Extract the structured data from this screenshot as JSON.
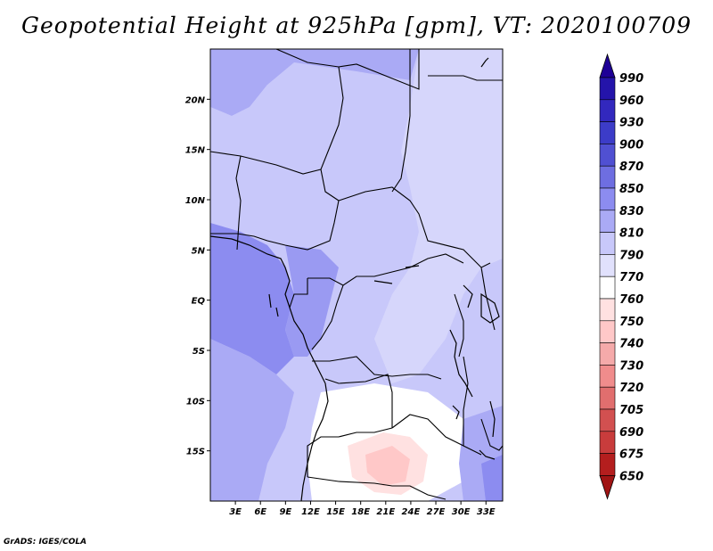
{
  "title": "Geopotential Height at 925hPa [gpm], VT: 2020100709",
  "credit": "GrADS: IGES/COLA",
  "map": {
    "lon_labels": [
      "3E",
      "6E",
      "9E",
      "12E",
      "15E",
      "18E",
      "21E",
      "24E",
      "27E",
      "30E",
      "33E"
    ],
    "lat_labels": [
      "20N",
      "15N",
      "10N",
      "5N",
      "EQ",
      "5S",
      "10S",
      "15S"
    ],
    "lon_range": [
      0,
      35
    ],
    "lat_range": [
      -20,
      25
    ]
  },
  "colorbar": {
    "levels": [
      "990",
      "960",
      "930",
      "900",
      "870",
      "850",
      "830",
      "810",
      "790",
      "770",
      "760",
      "750",
      "740",
      "730",
      "720",
      "705",
      "690",
      "675",
      "650"
    ],
    "colors": [
      "#1e0096",
      "#2414aa",
      "#3228be",
      "#3c3cc8",
      "#5050d2",
      "#6e6ee1",
      "#8c8cf0",
      "#aaaaf5",
      "#c8c8fa",
      "#e1e1fc",
      "#ffffff",
      "#ffe1e1",
      "#ffc8c8",
      "#f5aaaa",
      "#f08c8c",
      "#e16e6e",
      "#d25050",
      "#c83c3c",
      "#b41e1e",
      "#a01414"
    ]
  }
}
